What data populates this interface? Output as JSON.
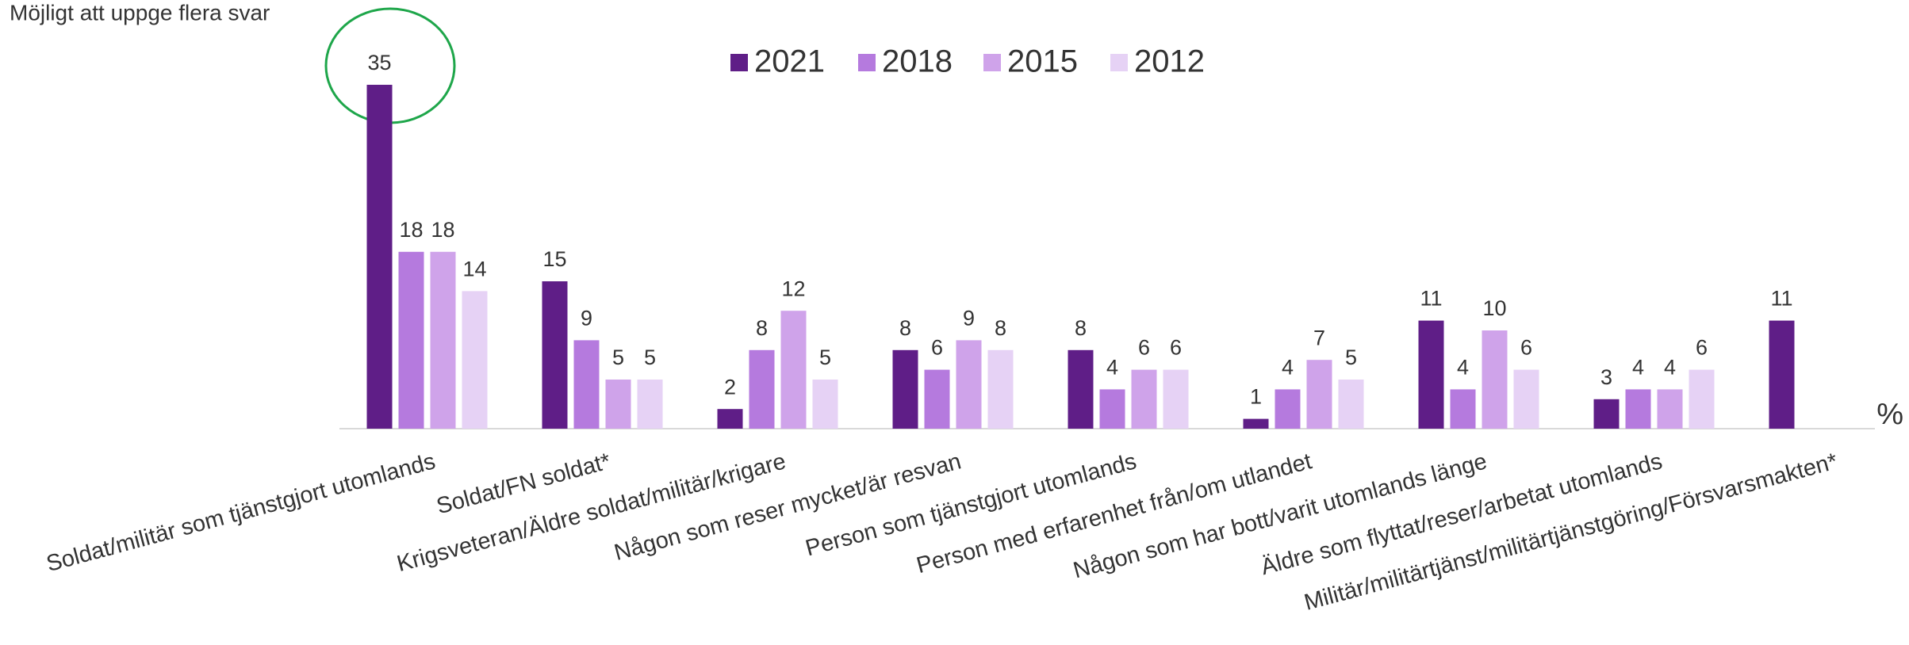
{
  "chart_data": {
    "type": "bar",
    "subtitle": "Möjligt att uppge flera svar",
    "unit_label": "%",
    "legend": "top",
    "categories": [
      "Soldat/militär som tjänstgjort utomlands",
      "Soldat/FN soldat*",
      "Krigsveteran/Äldre soldat/militär/krigare",
      "Någon som reser mycket/är resvan",
      "Person som tjänstgjort utomlands",
      "Person med erfarenhet från/om utlandet",
      "Någon som har bott/varit utomlands länge",
      "Äldre som flyttat/reser/arbetat utomlands",
      "Militär/militärtjänst/militärtjänstgöring/Försvarsmakten*"
    ],
    "series": [
      {
        "name": "2021",
        "color": "#5f1e87",
        "values": [
          35,
          15,
          2,
          8,
          8,
          1,
          11,
          3,
          11
        ]
      },
      {
        "name": "2018",
        "color": "#b57ade",
        "values": [
          18,
          9,
          8,
          6,
          4,
          4,
          4,
          4,
          null
        ]
      },
      {
        "name": "2015",
        "color": "#cfa3ea",
        "values": [
          18,
          5,
          12,
          9,
          6,
          7,
          10,
          4,
          null
        ]
      },
      {
        "name": "2012",
        "color": "#e6d2f5",
        "values": [
          14,
          5,
          5,
          8,
          6,
          5,
          6,
          6,
          null
        ]
      }
    ]
  }
}
